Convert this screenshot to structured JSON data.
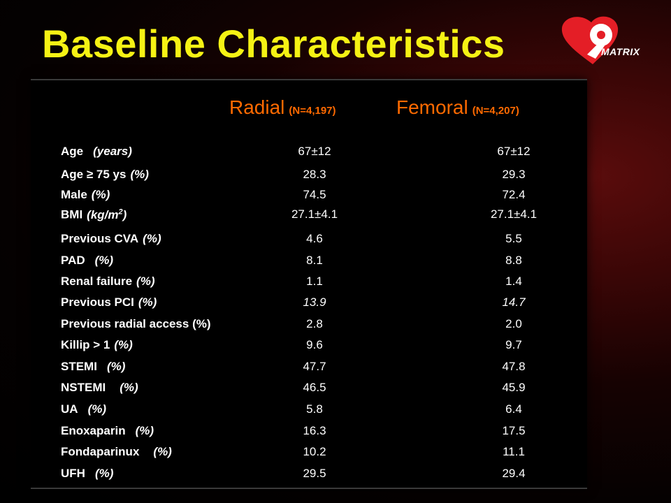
{
  "slide": {
    "title": "Baseline Characteristics",
    "logo_text": "MATRIX",
    "columns": [
      {
        "name": "Radial",
        "n": "(N=4,197)"
      },
      {
        "name": "Femoral",
        "n": "(N=4,207)"
      }
    ]
  },
  "rows": [
    {
      "label": "Age",
      "unit": "(years)",
      "radial": "67±12",
      "femoral": "67±12"
    },
    {
      "label": "Age ≥ 75 ys",
      "unit": "(%)",
      "radial": "28.3",
      "femoral": "29.3"
    },
    {
      "label": "Male",
      "unit": "(%)",
      "radial": "74.5",
      "femoral": "72.4"
    },
    {
      "label": "BMI",
      "unit": "(kg/m",
      "unit_sup": "2",
      "unit_close": ")",
      "radial": "27.1±4.1",
      "femoral": "27.1±4.1"
    },
    {
      "label": "Previous CVA",
      "unit": "(%)",
      "radial": "4.6",
      "femoral": "5.5"
    },
    {
      "label": "PAD",
      "unit": "(%)",
      "radial": "8.1",
      "femoral": "8.8"
    },
    {
      "label": "Renal failure",
      "unit": "(%)",
      "radial": "1.1",
      "femoral": "1.4"
    },
    {
      "label": "Previous PCI",
      "unit": "(%)",
      "radial": "13.9",
      "femoral": "14.7"
    },
    {
      "label": "Previous radial access (%)",
      "unit": "",
      "radial": "2.8",
      "femoral": "2.0"
    },
    {
      "label": "Killip > 1",
      "unit": "(%)",
      "radial": "9.6",
      "femoral": "9.7"
    },
    {
      "label": "STEMI",
      "unit": "(%)",
      "radial": "47.7",
      "femoral": "47.8"
    },
    {
      "label": "NSTEMI",
      "unit": "(%)",
      "radial": "46.5",
      "femoral": "45.9"
    },
    {
      "label": "UA",
      "unit": "(%)",
      "radial": "5.8",
      "femoral": "6.4"
    },
    {
      "label": "Enoxaparin",
      "unit": "(%)",
      "radial": "16.3",
      "femoral": "17.5"
    },
    {
      "label": "Fondaparinux",
      "unit": "(%)",
      "radial": "10.2",
      "femoral": "11.1"
    },
    {
      "label": "UFH",
      "unit": "(%)",
      "radial": "29.5",
      "femoral": "29.4"
    }
  ],
  "colors": {
    "title": "#f5f214",
    "column_header": "#ff6a00",
    "logo_red": "#e41e26",
    "text": "#ffffff"
  }
}
